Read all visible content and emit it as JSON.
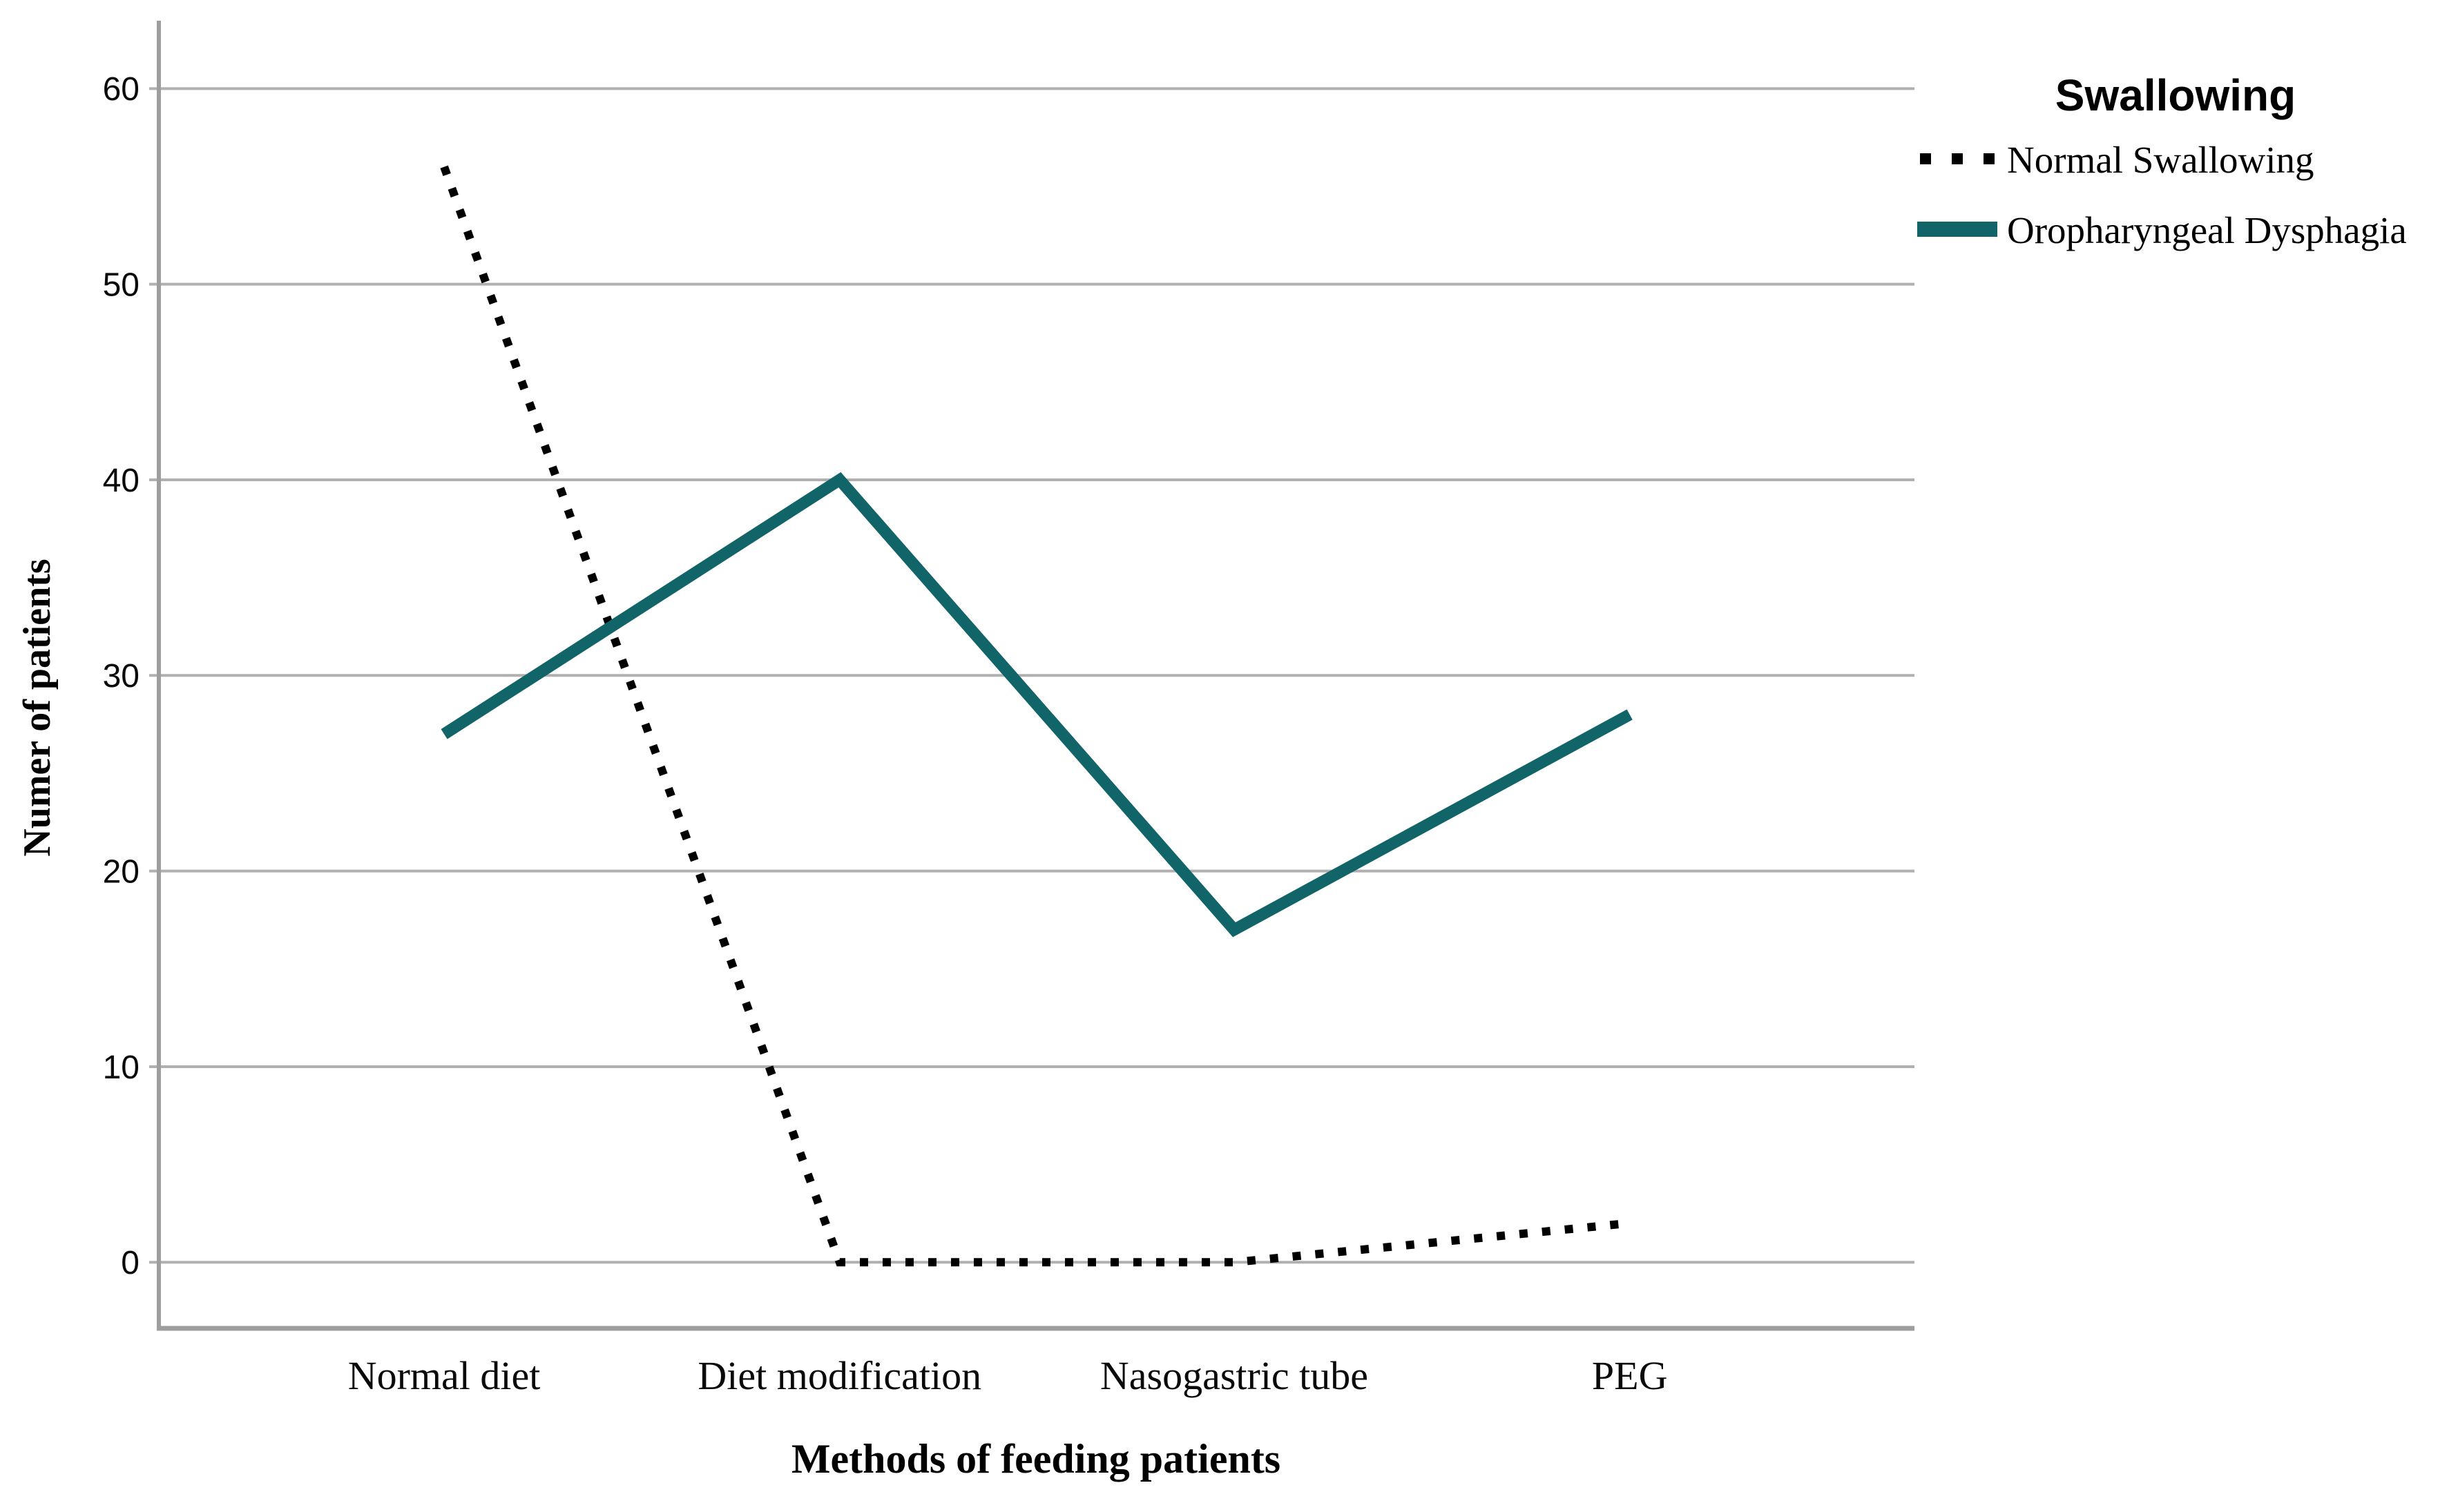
{
  "chart_data": {
    "type": "line",
    "title": "",
    "categories": [
      "Normal diet",
      "Diet modification",
      "Nasogastric tube",
      "PEG"
    ],
    "series": [
      {
        "name": "Normal Swallowing",
        "values": [
          56,
          0,
          0,
          2
        ],
        "line_style": "dotted",
        "color": "#000000"
      },
      {
        "name": "Oropharyngeal Dysphagia",
        "values": [
          27,
          40,
          17,
          28
        ],
        "line_style": "solid",
        "color": "#116468"
      }
    ],
    "xlabel": "Methods of feeding patients",
    "ylabel": "Numer of patients",
    "ylim": [
      0,
      60
    ],
    "yticks": [
      0,
      10,
      20,
      30,
      40,
      50,
      60
    ],
    "grid": "horizontal",
    "legend": {
      "title": "Swallowing",
      "position": "top-right-outside"
    }
  },
  "colors": {
    "background": "#ffffff",
    "gridline": "#b0b0b0",
    "axis": "#9e9e9e",
    "text": "#000000",
    "dotted_series": "#000000",
    "solid_series": "#116468"
  }
}
